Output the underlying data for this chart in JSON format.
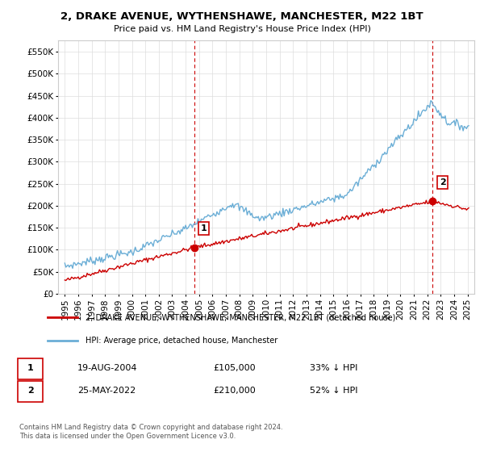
{
  "title": "2, DRAKE AVENUE, WYTHENSHAWE, MANCHESTER, M22 1BT",
  "subtitle": "Price paid vs. HM Land Registry's House Price Index (HPI)",
  "legend_entry1": "2, DRAKE AVENUE, WYTHENSHAWE, MANCHESTER, M22 1BT (detached house)",
  "legend_entry2": "HPI: Average price, detached house, Manchester",
  "annotation1_label": "1",
  "annotation1_date": "19-AUG-2004",
  "annotation1_price": "£105,000",
  "annotation1_hpi": "33% ↓ HPI",
  "annotation2_label": "2",
  "annotation2_date": "25-MAY-2022",
  "annotation2_price": "£210,000",
  "annotation2_hpi": "52% ↓ HPI",
  "copyright": "Contains HM Land Registry data © Crown copyright and database right 2024.\nThis data is licensed under the Open Government Licence v3.0.",
  "hpi_color": "#6baed6",
  "property_color": "#cc0000",
  "vline_color": "#cc0000",
  "background_color": "#ffffff",
  "grid_color": "#dddddd",
  "ylim": [
    0,
    575000
  ],
  "yticks": [
    0,
    50000,
    100000,
    150000,
    200000,
    250000,
    300000,
    350000,
    400000,
    450000,
    500000,
    550000
  ],
  "xlim_start": 1994.5,
  "xlim_end": 2025.5,
  "sale1_year": 2004.63,
  "sale2_year": 2022.4,
  "sale1_price": 105000,
  "sale2_price": 210000
}
